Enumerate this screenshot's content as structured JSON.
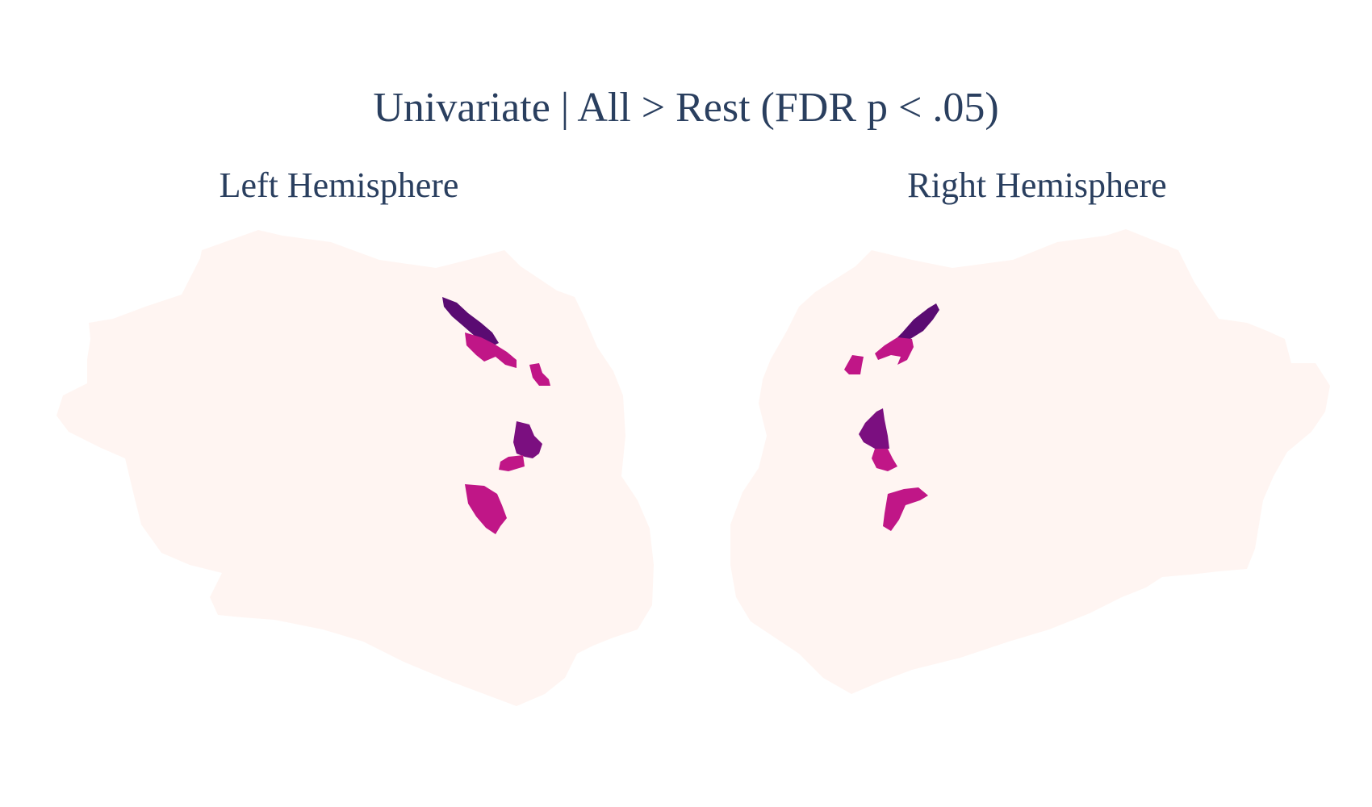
{
  "title": "Univariate | All > Rest (FDR p < .05)",
  "left_hemisphere": {
    "label": "Left Hemisphere"
  },
  "right_hemisphere": {
    "label": "Right Hemisphere"
  },
  "colors": {
    "surface": "#fff5f2",
    "region_dark": "#5a0b72",
    "region_mid": "#7b0f80",
    "region_magenta": "#c01687",
    "text": "#2a3f5f"
  }
}
